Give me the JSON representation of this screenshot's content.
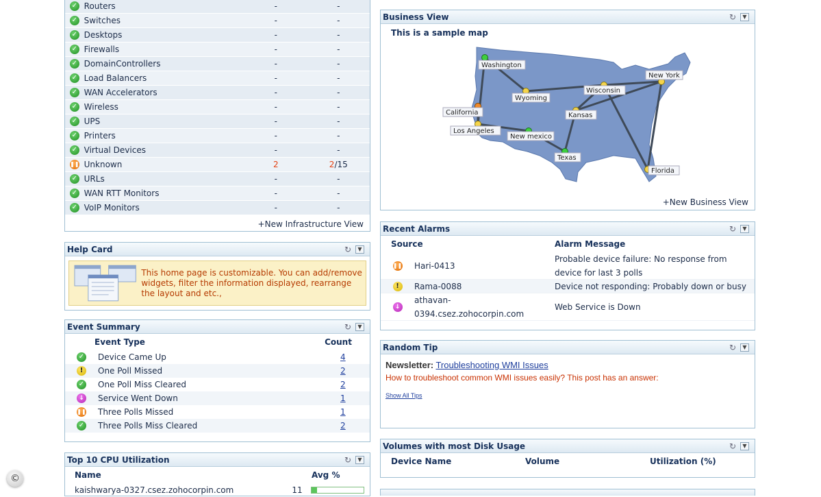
{
  "infrastructure": {
    "rows": [
      {
        "name": "Routers",
        "status": "ok",
        "c1": "-",
        "c2": "-"
      },
      {
        "name": "Switches",
        "status": "ok",
        "c1": "-",
        "c2": "-"
      },
      {
        "name": "Desktops",
        "status": "ok",
        "c1": "-",
        "c2": "-"
      },
      {
        "name": "Firewalls",
        "status": "ok",
        "c1": "-",
        "c2": "-"
      },
      {
        "name": "DomainControllers",
        "status": "ok",
        "c1": "-",
        "c2": "-"
      },
      {
        "name": "Load Balancers",
        "status": "ok",
        "c1": "-",
        "c2": "-"
      },
      {
        "name": "WAN Accelerators",
        "status": "ok",
        "c1": "-",
        "c2": "-"
      },
      {
        "name": "Wireless",
        "status": "ok",
        "c1": "-",
        "c2": "-"
      },
      {
        "name": "UPS",
        "status": "ok",
        "c1": "-",
        "c2": "-"
      },
      {
        "name": "Printers",
        "status": "ok",
        "c1": "-",
        "c2": "-"
      },
      {
        "name": "Virtual Devices",
        "status": "ok",
        "c1": "-",
        "c2": "-"
      },
      {
        "name": "Unknown",
        "status": "crit",
        "c1": "2",
        "c2a": "2",
        "c2b": "/15"
      },
      {
        "name": "URLs",
        "status": "ok",
        "c1": "-",
        "c2": "-"
      },
      {
        "name": "WAN RTT Monitors",
        "status": "ok",
        "c1": "-",
        "c2": "-"
      },
      {
        "name": "VoIP Monitors",
        "status": "ok",
        "c1": "-",
        "c2": "-"
      }
    ],
    "new_link": "+New Infrastructure View"
  },
  "help_card": {
    "title": "Help Card",
    "text": "This home page is customizable. You can add/remove widgets, filter the information displayed, rearrange the layout and etc.,"
  },
  "event_summary": {
    "title": "Event Summary",
    "col_type": "Event Type",
    "col_count": "Count",
    "rows": [
      {
        "status": "ok",
        "type": "Device Came Up",
        "count": "4"
      },
      {
        "status": "warn",
        "type": "One Poll Missed",
        "count": "2"
      },
      {
        "status": "ok",
        "type": "One Poll Miss Cleared",
        "count": "2"
      },
      {
        "status": "svc",
        "type": "Service Went Down",
        "count": "1"
      },
      {
        "status": "crit",
        "type": "Three Polls Missed",
        "count": "1"
      },
      {
        "status": "ok",
        "type": "Three Polls Miss Cleared",
        "count": "2"
      }
    ]
  },
  "cpu": {
    "title": "Top 10 CPU Utilization",
    "col_name": "Name",
    "col_avg": "Avg %",
    "row": {
      "name": "kaishwarya-0327.csez.zohocorpin.com",
      "avg": "11",
      "fraction": 0.11
    }
  },
  "business_view": {
    "title": "Business View",
    "subtitle": "This is a sample map",
    "cities": [
      "Washington",
      "Wyoming",
      "Wisconsin",
      "New York",
      "California",
      "Kansas",
      "Los Angeles",
      "New mexico",
      "Texas",
      "Florida"
    ],
    "new_link": "+New Business View"
  },
  "recent_alarms": {
    "title": "Recent Alarms",
    "col_source": "Source",
    "col_message": "Alarm Message",
    "rows": [
      {
        "status": "crit",
        "source": "Hari-0413",
        "message": "Probable device failure: No response from device for last 3 polls"
      },
      {
        "status": "warn",
        "source": "Rama-0088",
        "message": "Device not responding: Probably down or busy"
      },
      {
        "status": "svc",
        "source": "athavan-0394.csez.zohocorpin.com",
        "message": "Web Service is Down"
      }
    ]
  },
  "random_tip": {
    "title": "Random Tip",
    "label": "Newsletter:",
    "link": "Troubleshooting WMI Issues",
    "text": "How to troubleshoot common WMI issues easily? This post has an answer:",
    "show_all": "Show All Tips"
  },
  "volumes": {
    "title": "Volumes with most Disk Usage",
    "col_device": "Device Name",
    "col_volume": "Volume",
    "col_util": "Utilization (%)"
  },
  "colors": {
    "accent_border": "#9fbfd3",
    "header_text": "#16305a",
    "critical_text": "#e44010",
    "map_fill": "#7b97c8"
  }
}
